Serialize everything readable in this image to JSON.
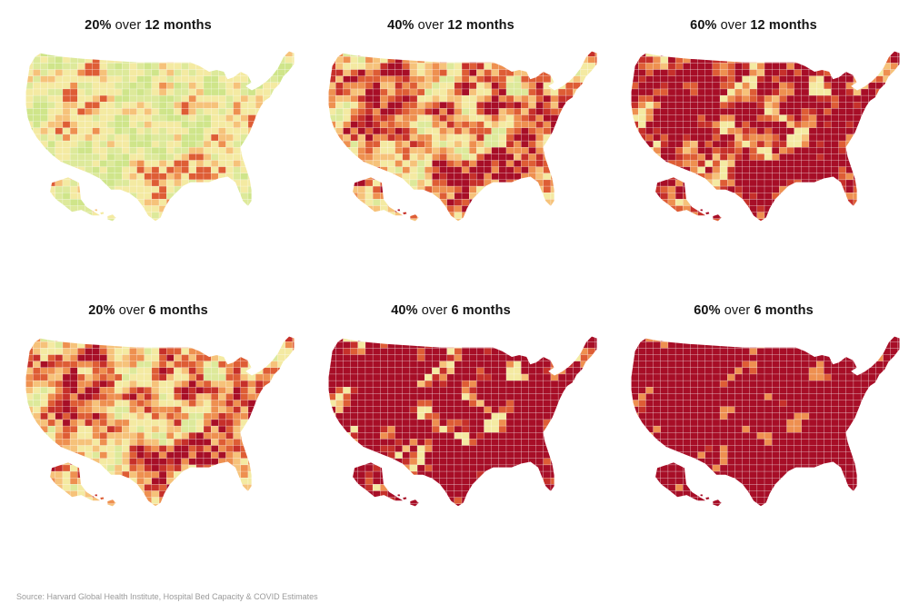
{
  "source": "Source: Harvard Global Health Institute, Hospital Bed Capacity & COVID Estimates",
  "colors": {
    "green": "#cfe58a",
    "light_green": "#dde99a",
    "pale_yellow": "#f4eaa2",
    "light_orange": "#f6c27a",
    "orange": "#ee9050",
    "dark_orange": "#de5d35",
    "red": "#c6302a",
    "dark_red": "#a70e27",
    "state_border": "#ffffff"
  },
  "panels": [
    {
      "pct": "20%",
      "over": "over",
      "duration": "12 months",
      "shading": {
        "dark_red": 0.0,
        "red": 0.0,
        "dark_orange": 0.02,
        "orange": 0.06,
        "light_orange": 0.16,
        "pale_yellow": 0.42,
        "light_green": 0.2,
        "green": 0.14
      }
    },
    {
      "pct": "40%",
      "over": "over",
      "duration": "12 months",
      "shading": {
        "dark_red": 0.18,
        "red": 0.12,
        "dark_orange": 0.16,
        "orange": 0.18,
        "light_orange": 0.16,
        "pale_yellow": 0.18,
        "light_green": 0.02,
        "green": 0.0
      }
    },
    {
      "pct": "60%",
      "over": "over",
      "duration": "12 months",
      "shading": {
        "dark_red": 0.58,
        "red": 0.1,
        "dark_orange": 0.12,
        "orange": 0.1,
        "light_orange": 0.06,
        "pale_yellow": 0.04,
        "light_green": 0.0,
        "green": 0.0
      }
    },
    {
      "pct": "20%",
      "over": "over",
      "duration": "6 months",
      "shading": {
        "dark_red": 0.12,
        "red": 0.12,
        "dark_orange": 0.16,
        "orange": 0.18,
        "light_orange": 0.18,
        "pale_yellow": 0.22,
        "light_green": 0.02,
        "green": 0.0
      }
    },
    {
      "pct": "40%",
      "over": "over",
      "duration": "6 months",
      "shading": {
        "dark_red": 0.8,
        "red": 0.04,
        "dark_orange": 0.06,
        "orange": 0.06,
        "light_orange": 0.03,
        "pale_yellow": 0.01,
        "light_green": 0.0,
        "green": 0.0
      }
    },
    {
      "pct": "60%",
      "over": "over",
      "duration": "6 months",
      "shading": {
        "dark_red": 0.96,
        "red": 0.01,
        "dark_orange": 0.02,
        "orange": 0.01,
        "light_orange": 0.0,
        "pale_yellow": 0.0,
        "light_green": 0.0,
        "green": 0.0
      }
    }
  ]
}
